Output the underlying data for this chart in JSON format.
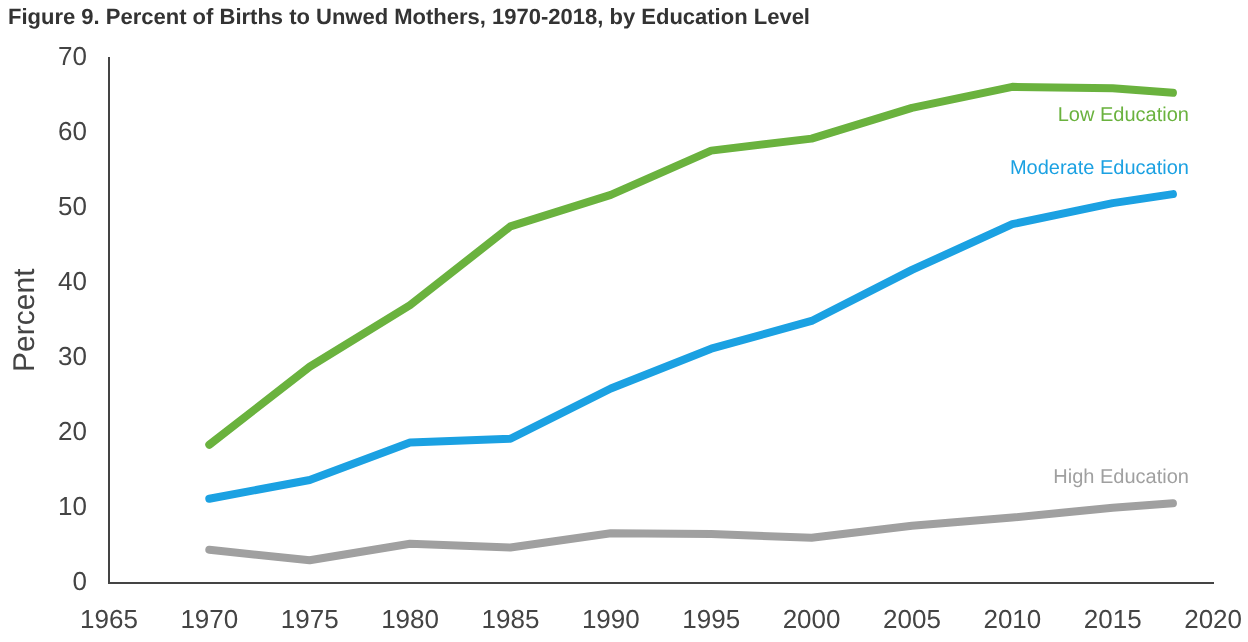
{
  "chart_data": {
    "type": "line",
    "title": "Figure 9. Percent of Births to Unwed Mothers, 1970-2018, by Education Level",
    "ylabel": "Percent",
    "x": [
      1970,
      1975,
      1980,
      1985,
      1990,
      1995,
      2000,
      2005,
      2010,
      2015,
      2018
    ],
    "series": [
      {
        "name": "Low Education",
        "color": "#6ab23e",
        "values": [
          18.4,
          28.8,
          37,
          47.5,
          51.7,
          57.6,
          59.2,
          63.3,
          66.1,
          65.9,
          65.3
        ]
      },
      {
        "name": "Moderate Education",
        "color": "#1ba1e2",
        "values": [
          11.2,
          13.7,
          18.7,
          19.2,
          25.9,
          31.2,
          34.9,
          41.7,
          47.8,
          50.6,
          51.8
        ]
      },
      {
        "name": "High Education",
        "color": "#a0a0a0",
        "values": [
          4.4,
          3.0,
          5.2,
          4.7,
          6.6,
          6.5,
          6.0,
          7.6,
          8.7,
          10,
          10.6
        ]
      }
    ],
    "xlim": [
      1965,
      2020
    ],
    "xticks": [
      1965,
      1970,
      1975,
      1980,
      1985,
      1990,
      1995,
      2000,
      2005,
      2010,
      2015,
      2020
    ],
    "ylim": [
      0,
      70
    ],
    "yticks": [
      0,
      10,
      20,
      30,
      40,
      50,
      60,
      70
    ],
    "grid": false,
    "legend": false,
    "marker": "none",
    "line_style": "solid"
  }
}
